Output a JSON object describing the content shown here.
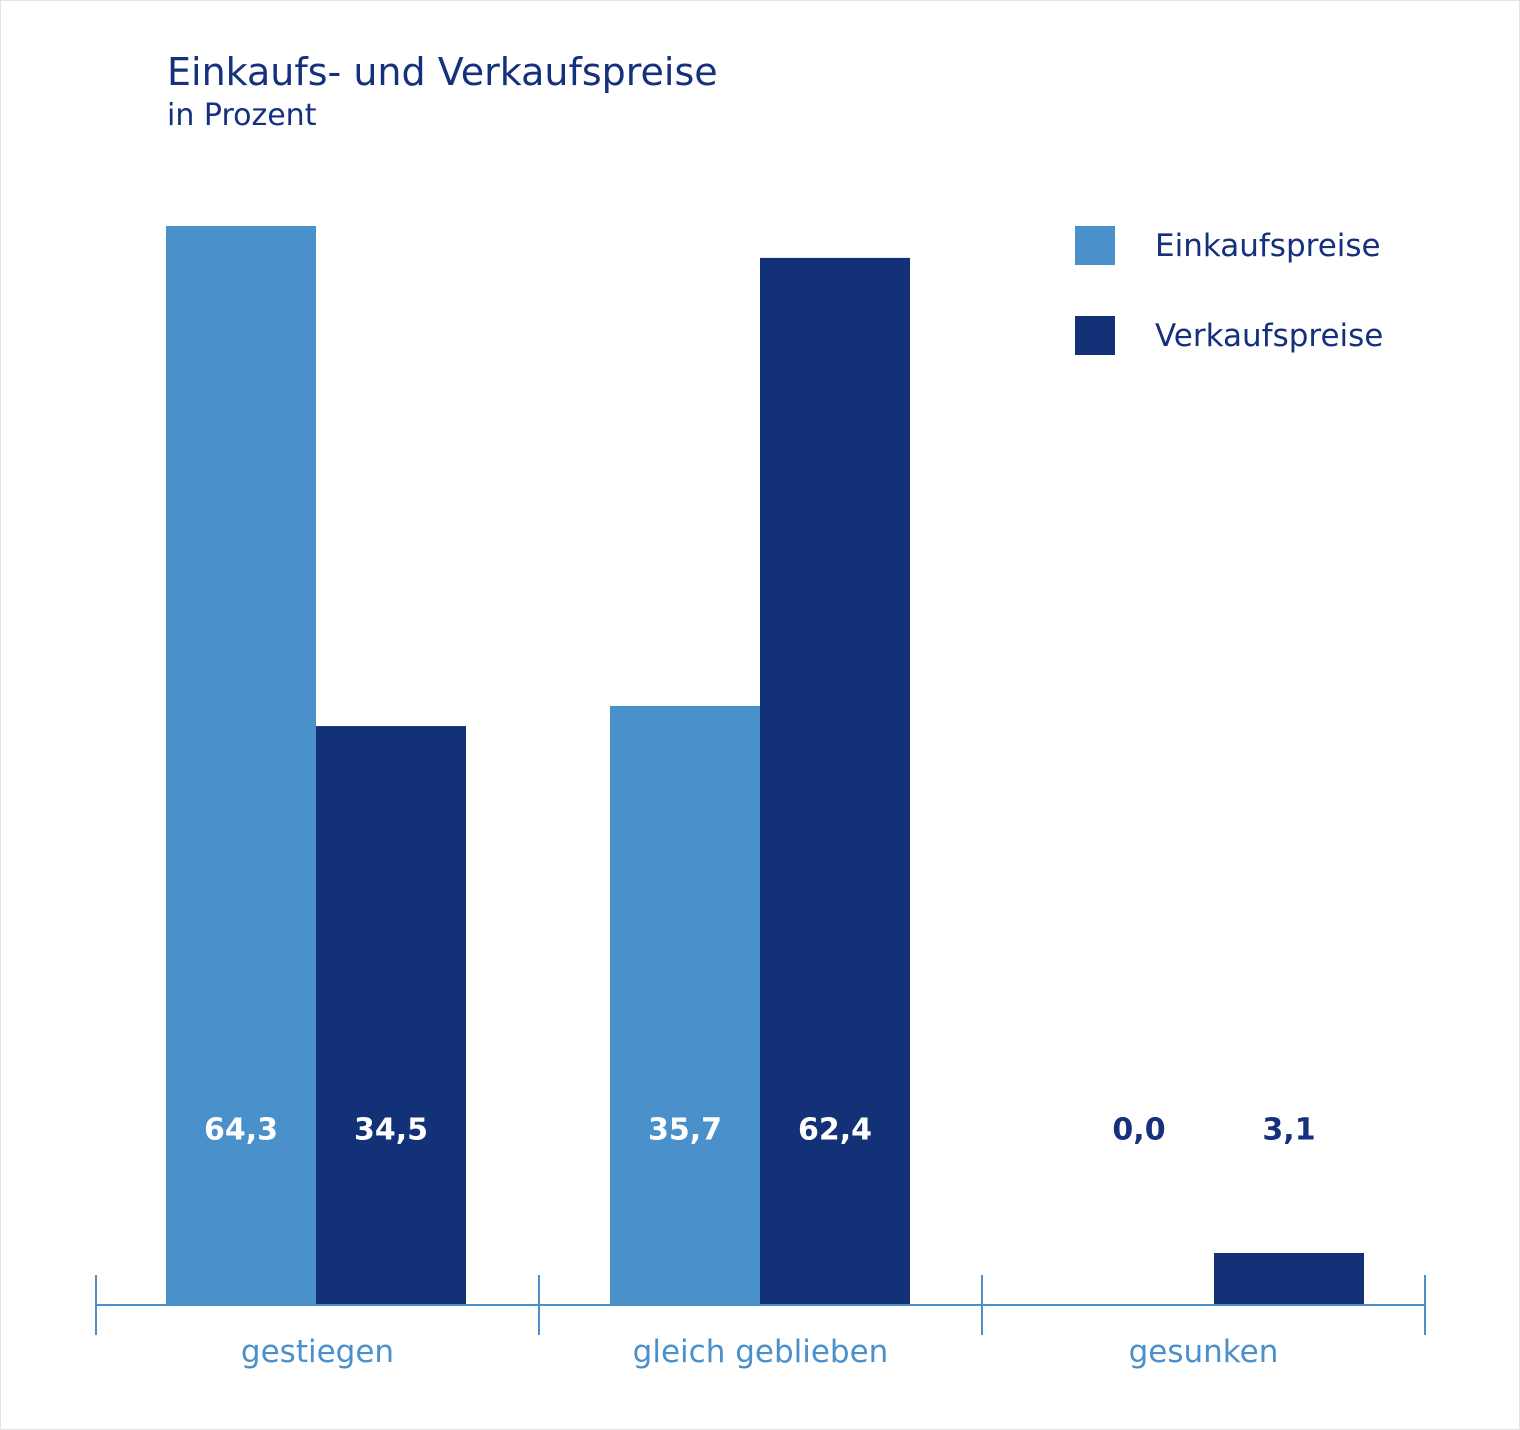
{
  "chart_data": {
    "type": "bar",
    "title": "Einkaufs- und Verkaufspreise",
    "subtitle": "in Prozent",
    "categories": [
      "gestiegen",
      "gleich geblieben",
      "gesunken"
    ],
    "series": [
      {
        "name": "Einkaufspreise",
        "values": [
          64.3,
          35.7,
          0.0
        ],
        "labels": [
          "64,3",
          "35,7",
          "0,0"
        ],
        "color": "#4a90cb"
      },
      {
        "name": "Verkaufspreise",
        "values": [
          34.5,
          62.4,
          3.1
        ],
        "labels": [
          "34,5",
          "62,4",
          "3,1"
        ],
        "color": "#133177"
      }
    ],
    "ylim": [
      0,
      64.3
    ],
    "grid": false,
    "legend_position": "top-right",
    "axis_color": "#4a90cb",
    "label_color_inside": "#ffffff",
    "label_color_outside": "#15317e"
  }
}
